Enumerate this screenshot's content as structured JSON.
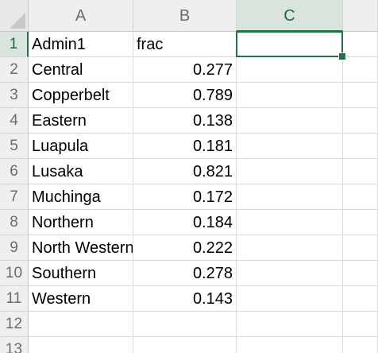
{
  "sheet": {
    "columns": [
      {
        "letter": "A",
        "selected": false
      },
      {
        "letter": "B",
        "selected": false
      },
      {
        "letter": "C",
        "selected": true
      }
    ],
    "row_numbers": [
      "1",
      "2",
      "3",
      "4",
      "5",
      "6",
      "7",
      "8",
      "9",
      "10",
      "11",
      "12",
      "13"
    ],
    "selected_row": "1",
    "header_row": {
      "a": "Admin1",
      "b": "frac"
    },
    "rows": [
      {
        "a": "Central",
        "b": "0.277"
      },
      {
        "a": "Copperbelt",
        "b": "0.789"
      },
      {
        "a": "Eastern",
        "b": "0.138"
      },
      {
        "a": "Luapula",
        "b": "0.181"
      },
      {
        "a": "Lusaka",
        "b": "0.821"
      },
      {
        "a": "Muchinga",
        "b": "0.172"
      },
      {
        "a": "Northern",
        "b": "0.184"
      },
      {
        "a": "North Western",
        "b": "0.222"
      },
      {
        "a": "Southern",
        "b": "0.278"
      },
      {
        "a": "Western",
        "b": "0.143"
      }
    ],
    "active_cell": "C1",
    "colors": {
      "accent": "#217346",
      "header_bg": "#efefef",
      "selected_header_bg": "#d9e4dc",
      "gridline": "#dadada"
    }
  }
}
